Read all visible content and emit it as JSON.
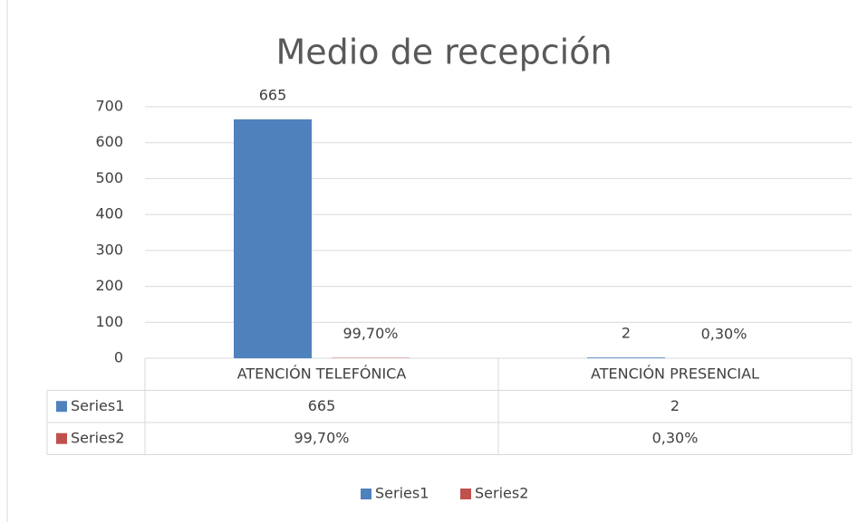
{
  "chart_data": {
    "type": "bar",
    "title": "Medio de recepción",
    "categories": [
      "ATENCIÓN TELEFÓNICA",
      "ATENCIÓN PRESENCIAL"
    ],
    "series": [
      {
        "name": "Series1",
        "color": "#4f81bd",
        "values": [
          665,
          2
        ]
      },
      {
        "name": "Series2",
        "color": "#c0504d",
        "values": [
          0.997,
          0.003
        ],
        "value_labels": [
          "99,70%",
          "0,30%"
        ]
      }
    ],
    "ylim": [
      0,
      700
    ],
    "yticks": [
      0,
      100,
      200,
      300,
      400,
      500,
      600,
      700
    ],
    "grid": true,
    "legend": "bottom",
    "data_table": true
  }
}
